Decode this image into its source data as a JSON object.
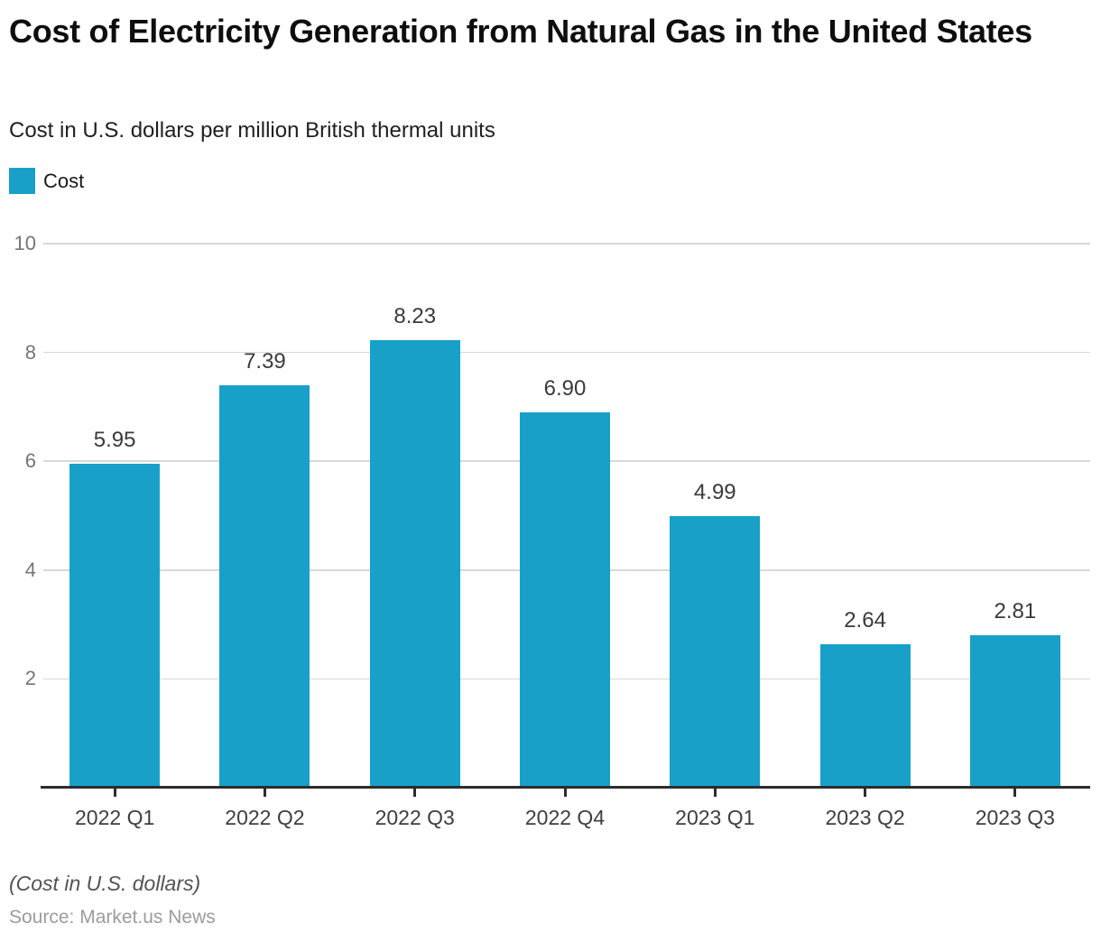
{
  "header": {
    "title": "Cost of Electricity Generation from Natural Gas in the United States",
    "subtitle": "Cost in U.S. dollars per million British thermal units"
  },
  "legend": {
    "label": "Cost",
    "color": "#18a0c9"
  },
  "chart_data": {
    "type": "bar",
    "title": "Cost of Electricity Generation from Natural Gas in the United States",
    "categories": [
      "2022 Q1",
      "2022 Q2",
      "2022 Q3",
      "2022 Q4",
      "2023 Q1",
      "2023 Q2",
      "2023 Q3"
    ],
    "series": [
      {
        "name": "Cost",
        "values": [
          5.95,
          7.39,
          8.23,
          6.9,
          4.99,
          2.64,
          2.81
        ]
      }
    ],
    "value_labels": [
      "5.95",
      "7.39",
      "8.23",
      "6.90",
      "4.99",
      "2.64",
      "2.81"
    ],
    "xlabel": "",
    "ylabel": "",
    "ylim": [
      0,
      10
    ],
    "yticks": [
      2,
      4,
      6,
      8,
      10
    ],
    "grid": "horizontal",
    "legend_position": "top-left",
    "bar_color": "#18a0c9",
    "gridline_color": "#d8d8d8",
    "axis_color": "#2c2c2c"
  },
  "footer": {
    "note": "(Cost in U.S. dollars)",
    "source": "Source: Market.us News"
  }
}
